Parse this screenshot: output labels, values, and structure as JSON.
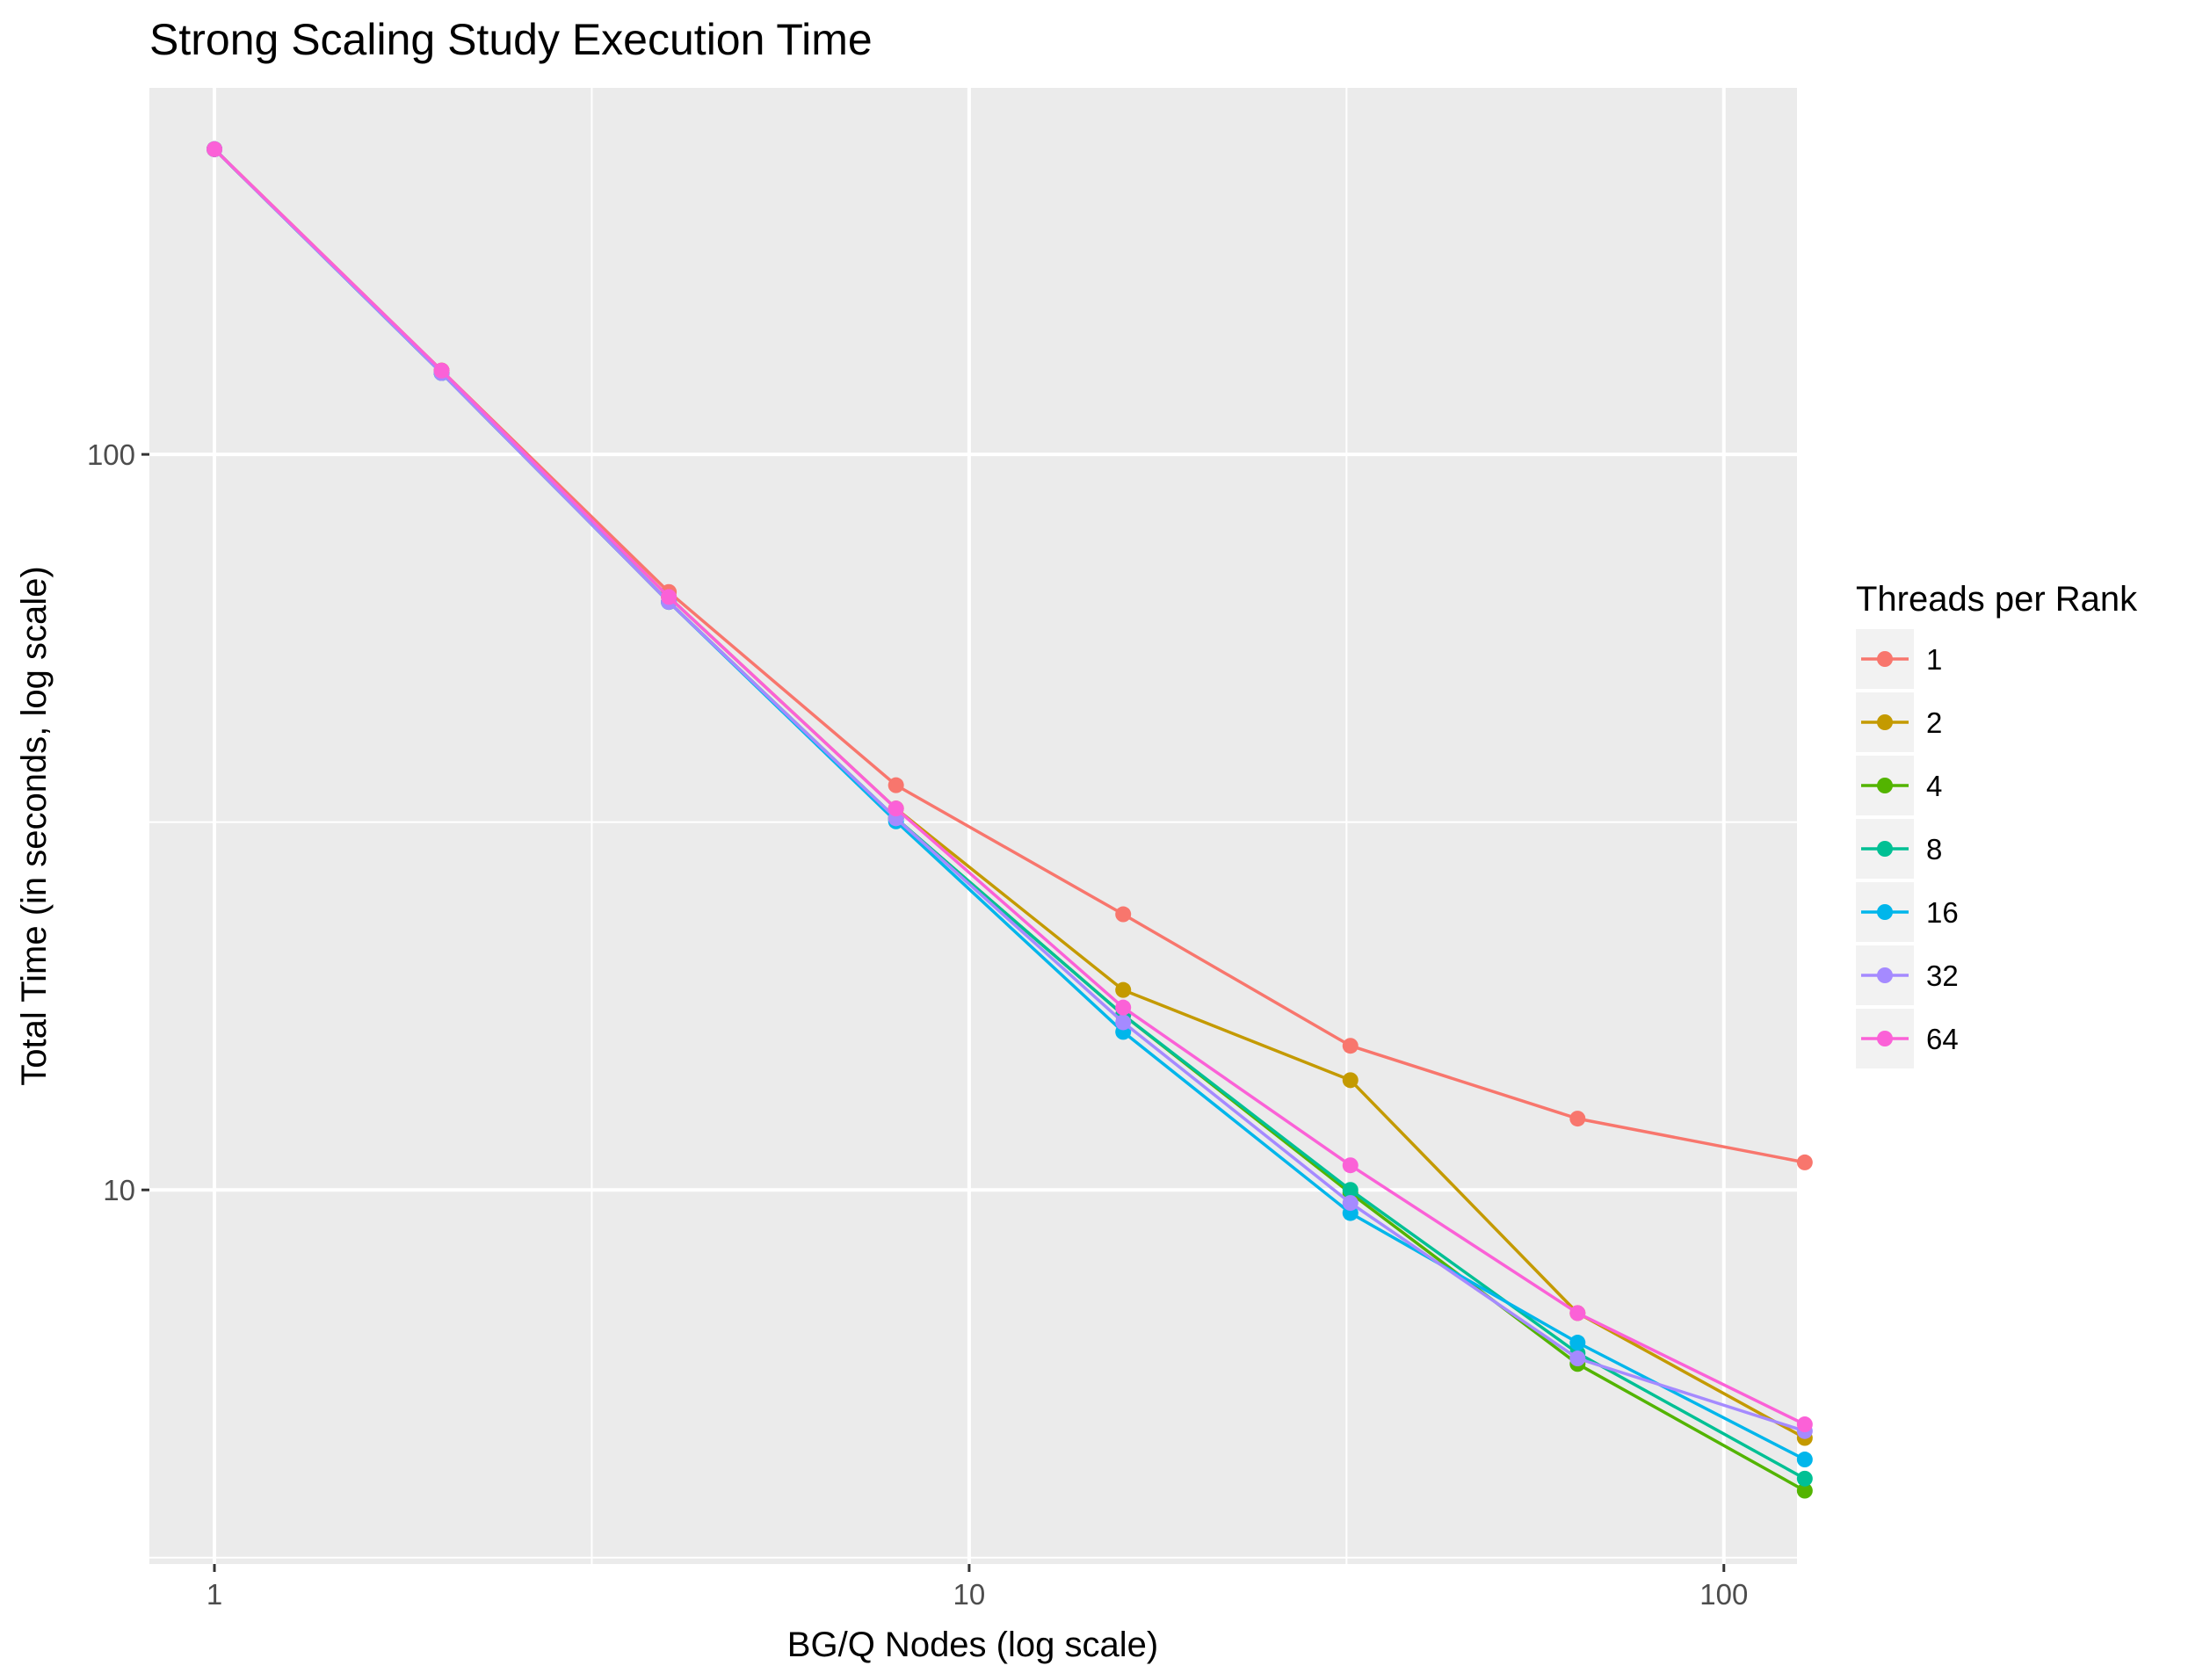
{
  "chart_data": {
    "type": "line",
    "title": "Strong Scaling Study Execution Time",
    "xlabel": "BG/Q Nodes (log scale)",
    "ylabel": "Total Time (in seconds, log scale)",
    "x_scale": "log10",
    "y_scale": "log10",
    "xlim": [
      0.82,
      125
    ],
    "ylim": [
      3.1,
      315
    ],
    "x_ticks": [
      1,
      10,
      100
    ],
    "x_tick_labels": [
      "1",
      "10",
      "100"
    ],
    "y_ticks": [
      10,
      100
    ],
    "y_tick_labels": [
      "10",
      "100"
    ],
    "grid": true,
    "legend": {
      "title": "Threads per Rank",
      "position": "right"
    },
    "x": [
      1,
      2,
      4,
      8,
      16,
      32,
      64,
      128
    ],
    "series": [
      {
        "name": "1",
        "color": "#F8766D",
        "values": [
          260,
          130,
          65,
          35.5,
          23.7,
          15.7,
          12.5,
          10.9
        ]
      },
      {
        "name": "2",
        "color": "#C49A00",
        "values": [
          260,
          130,
          64,
          33,
          18.7,
          14.1,
          6.8,
          4.6
        ]
      },
      {
        "name": "4",
        "color": "#53B400",
        "values": [
          260,
          129,
          63,
          32,
          17.3,
          9.9,
          5.8,
          3.9
        ]
      },
      {
        "name": "8",
        "color": "#00C094",
        "values": [
          260,
          129,
          63,
          32,
          17.3,
          10.0,
          6.0,
          4.05
        ]
      },
      {
        "name": "16",
        "color": "#00B6EB",
        "values": [
          260,
          129,
          63,
          31.7,
          16.4,
          9.3,
          6.2,
          4.3
        ]
      },
      {
        "name": "32",
        "color": "#A58AFF",
        "values": [
          260,
          129,
          63,
          32,
          16.9,
          9.6,
          5.9,
          4.7
        ]
      },
      {
        "name": "64",
        "color": "#FB61D7",
        "values": [
          260,
          130,
          64,
          33,
          17.7,
          10.8,
          6.8,
          4.8
        ]
      }
    ]
  }
}
